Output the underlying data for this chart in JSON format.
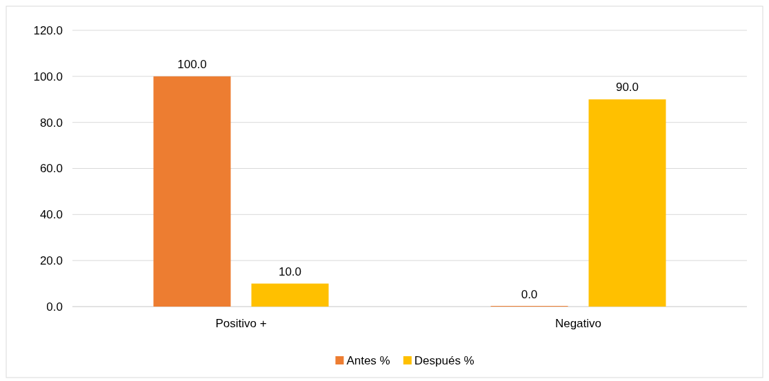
{
  "chart_data": {
    "type": "bar",
    "categories": [
      "Positivo +",
      "Negativo"
    ],
    "series": [
      {
        "name": "Antes %",
        "color": "#ed7d31",
        "values": [
          100,
          0
        ],
        "value_labels": [
          "100.0",
          "0.0"
        ]
      },
      {
        "name": "Después %",
        "color": "#ffc000",
        "values": [
          10,
          90
        ],
        "value_labels": [
          "10.0",
          "90.0"
        ]
      }
    ],
    "ylim": [
      0,
      120
    ],
    "yticks": [
      {
        "value": 0,
        "label": "0.0"
      },
      {
        "value": 20,
        "label": "20.0"
      },
      {
        "value": 40,
        "label": "40.0"
      },
      {
        "value": 60,
        "label": "60.0"
      },
      {
        "value": 80,
        "label": "80.0"
      },
      {
        "value": 100,
        "label": "100.0"
      },
      {
        "value": 120,
        "label": "120.0"
      }
    ],
    "grid": "y",
    "legend": "bottom"
  }
}
